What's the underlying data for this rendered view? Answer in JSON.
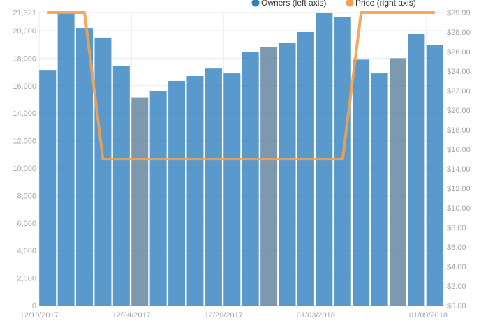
{
  "chart_data": {
    "type": "bar",
    "legend_position": "top",
    "grid": true,
    "colors": {
      "owners": "#2f80bf",
      "price": "#f5a04d",
      "highlight": "#5b7f9c",
      "grid": "#ebebeb",
      "tick_text": "#a6a6a6"
    },
    "x": [
      "12/19/2017",
      "12/20/2017",
      "12/21/2017",
      "12/22/2017",
      "12/23/2017",
      "12/24/2017",
      "12/25/2017",
      "12/26/2017",
      "12/27/2017",
      "12/28/2017",
      "12/29/2017",
      "12/30/2017",
      "12/31/2017",
      "01/01/2018",
      "01/02/2018",
      "01/03/2018",
      "01/04/2018",
      "01/05/2018",
      "01/06/2018",
      "01/07/2018",
      "01/08/2018",
      "01/09/2018"
    ],
    "x_tick_labels": [
      "12/19/2017",
      "12/24/2017",
      "12/29/2017",
      "01/03/2018",
      "01/09/2018"
    ],
    "series": [
      {
        "name": "Owners (left axis)",
        "axis": "left",
        "kind": "bar",
        "values": [
          17100,
          21300,
          20200,
          19500,
          17450,
          15150,
          15600,
          16350,
          16700,
          17250,
          16900,
          18450,
          18800,
          19100,
          19900,
          21300,
          21000,
          17900,
          16900,
          18000,
          19750,
          18950
        ],
        "highlighted_indices": [
          5,
          12,
          19
        ]
      },
      {
        "name": "Price (right axis)",
        "axis": "right",
        "kind": "line",
        "values": [
          29.99,
          29.99,
          29.99,
          14.99,
          14.99,
          14.99,
          14.99,
          14.99,
          14.99,
          14.99,
          14.99,
          14.99,
          14.99,
          14.99,
          14.99,
          14.99,
          14.99,
          29.99,
          29.99,
          29.99,
          29.99,
          29.99
        ]
      }
    ],
    "y_left": {
      "ylim": [
        0,
        21321
      ],
      "ticks": [
        0,
        2000,
        4000,
        6000,
        8000,
        10000,
        12000,
        14000,
        16000,
        18000,
        20000,
        21321
      ],
      "tick_labels": [
        "0",
        "2,000",
        "4,000",
        "6,000",
        "8,000",
        "10,000",
        "12,000",
        "14,000",
        "16,000",
        "18,000",
        "20,000",
        "21,321"
      ]
    },
    "y_right": {
      "ylim": [
        0,
        29.99
      ],
      "ticks": [
        0,
        2,
        4,
        6,
        8,
        10,
        12,
        14,
        16,
        18,
        20,
        22,
        24,
        26,
        28,
        29.99
      ],
      "tick_labels": [
        "$0.00",
        "$2.00",
        "$4.00",
        "$6.00",
        "$8.00",
        "$10.00",
        "$12.00",
        "$14.00",
        "$16.00",
        "$18.00",
        "$20.00",
        "$22.00",
        "$24.00",
        "$26.00",
        "$28.00",
        "$29.99"
      ]
    }
  }
}
